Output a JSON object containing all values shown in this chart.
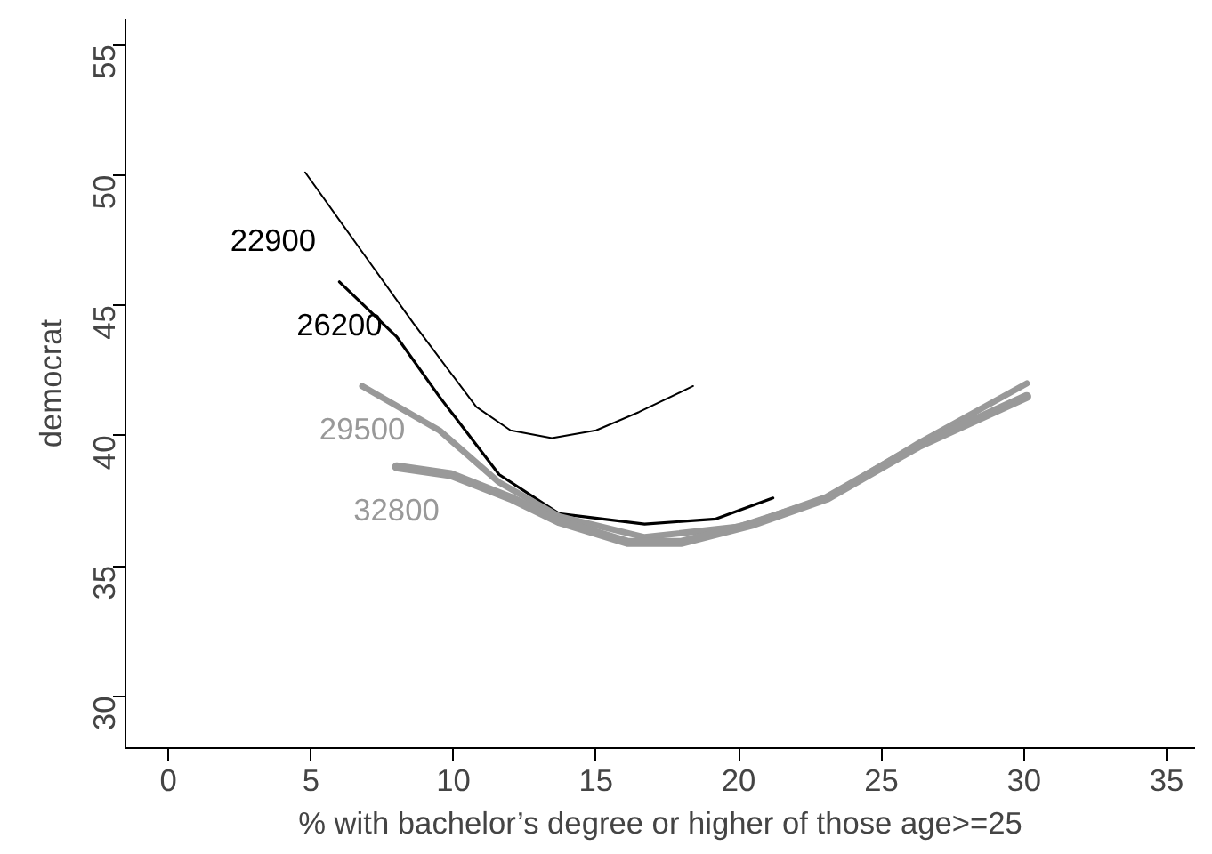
{
  "chart_data": {
    "type": "line",
    "xlabel": "% with bachelor’s degree or higher of those age>=25",
    "ylabel": "democrat",
    "xlim": [
      -1.5,
      36
    ],
    "ylim": [
      28,
      56
    ],
    "xticks": [
      0,
      5,
      10,
      15,
      20,
      25,
      30,
      35
    ],
    "yticks": [
      30,
      35,
      40,
      45,
      50,
      55
    ],
    "grid": false,
    "series": [
      {
        "name": "22900",
        "color": "#000000",
        "x": [
          4.8,
          6.7,
          8.6,
          10.8,
          12,
          13.45,
          15,
          16.5,
          18.4
        ],
        "values": [
          50.1,
          47.2,
          44.3,
          41.1,
          40.2,
          39.9,
          40.2,
          40.9,
          41.9
        ]
      },
      {
        "name": "26200",
        "color": "#000000",
        "x": [
          6.0,
          8.0,
          9.5,
          11.6,
          13.7,
          16.7,
          19.2,
          21.2
        ],
        "values": [
          45.9,
          43.8,
          41.5,
          38.5,
          37.0,
          36.6,
          36.8,
          37.6
        ]
      },
      {
        "name": "29500",
        "color": "#999999",
        "x": [
          6.8,
          9.5,
          11.6,
          13.7,
          16.7,
          20,
          23.1,
          26.3,
          30.1
        ],
        "values": [
          41.9,
          40.2,
          38.2,
          36.9,
          36.1,
          36.5,
          37.6,
          39.7,
          42.0
        ]
      },
      {
        "name": "32800",
        "color": "#999999",
        "x": [
          8.0,
          9.9,
          12.0,
          13.7,
          16.1,
          18,
          20.5,
          23.1,
          26.3,
          30.1
        ],
        "values": [
          38.8,
          38.5,
          37.6,
          36.7,
          35.9,
          35.9,
          36.6,
          37.6,
          39.6,
          41.5
        ]
      }
    ]
  }
}
